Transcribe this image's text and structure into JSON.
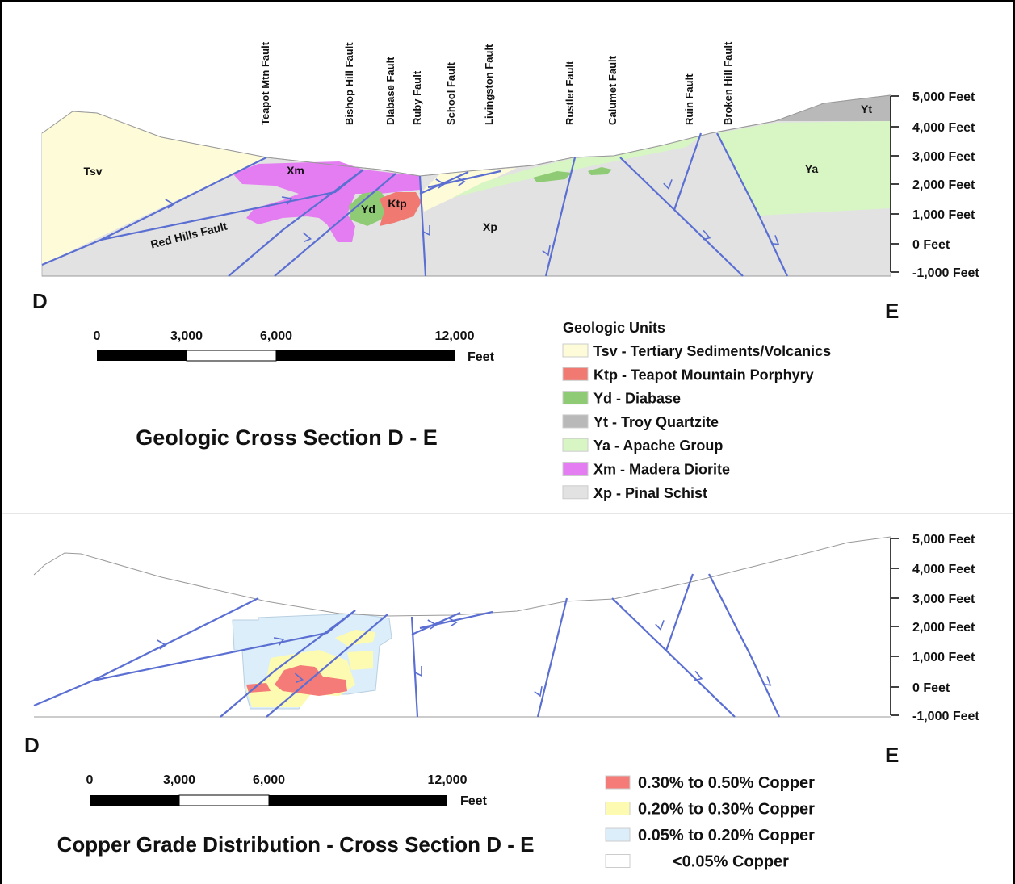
{
  "top": {
    "faults": [
      "Teapot Mtn Fault",
      "Bishop Hill Fault",
      "Diabase Fault",
      "Ruby Fault",
      "School Fault",
      "Livingston Fault",
      "Rustler Fault",
      "Calumet Fault",
      "Ruin Fault",
      "Broken Hill Fault"
    ],
    "map_labels": [
      "Tsv",
      "Xm",
      "Yd",
      "Ktp",
      "Xp",
      "Ya",
      "Yt",
      "Red Hills Fault"
    ],
    "elevations": [
      "5,000 Feet",
      "4,000 Feet",
      "3,000 Feet",
      "2,000 Feet",
      "1,000 Feet",
      "0 Feet",
      "-1,000 Feet"
    ],
    "section_start": "D",
    "section_end": "E",
    "scale": {
      "labels": [
        "0",
        "3,000",
        "6,000",
        "12,000"
      ],
      "unit": "Feet"
    },
    "title": "Geologic Cross Section D - E",
    "legend": {
      "title": "Geologic Units",
      "items": [
        {
          "label": "Tsv - Tertiary Sediments/Volcanics",
          "color": "#fdfbd8"
        },
        {
          "label": "Ktp - Teapot Mountain Porphyry",
          "color": "#f07a72"
        },
        {
          "label": "Yd - Diabase",
          "color": "#8ecb74"
        },
        {
          "label": "Yt - Troy Quartzite",
          "color": "#b9b9b9"
        },
        {
          "label": "Ya - Apache Group",
          "color": "#d8f6c4"
        },
        {
          "label": "Xm - Madera Diorite",
          "color": "#e47df2"
        },
        {
          "label": "Xp - Pinal Schist",
          "color": "#e2e2e2"
        }
      ]
    }
  },
  "bottom": {
    "elevations": [
      "5,000 Feet",
      "4,000 Feet",
      "3,000 Feet",
      "2,000 Feet",
      "1,000 Feet",
      "0 Feet",
      "-1,000 Feet"
    ],
    "section_start": "D",
    "section_end": "E",
    "scale": {
      "labels": [
        "0",
        "3,000",
        "6,000",
        "12,000"
      ],
      "unit": "Feet"
    },
    "title": "Copper Grade Distribution - Cross Section D - E",
    "legend": {
      "items": [
        {
          "label": "0.30% to 0.50% Copper",
          "color": "#f47b78"
        },
        {
          "label": "0.20% to 0.30% Copper",
          "color": "#fdfbb2"
        },
        {
          "label": "0.05% to 0.20% Copper",
          "color": "#dbeefa"
        },
        {
          "label": "<0.05% Copper",
          "color": "#ffffff"
        }
      ]
    }
  }
}
